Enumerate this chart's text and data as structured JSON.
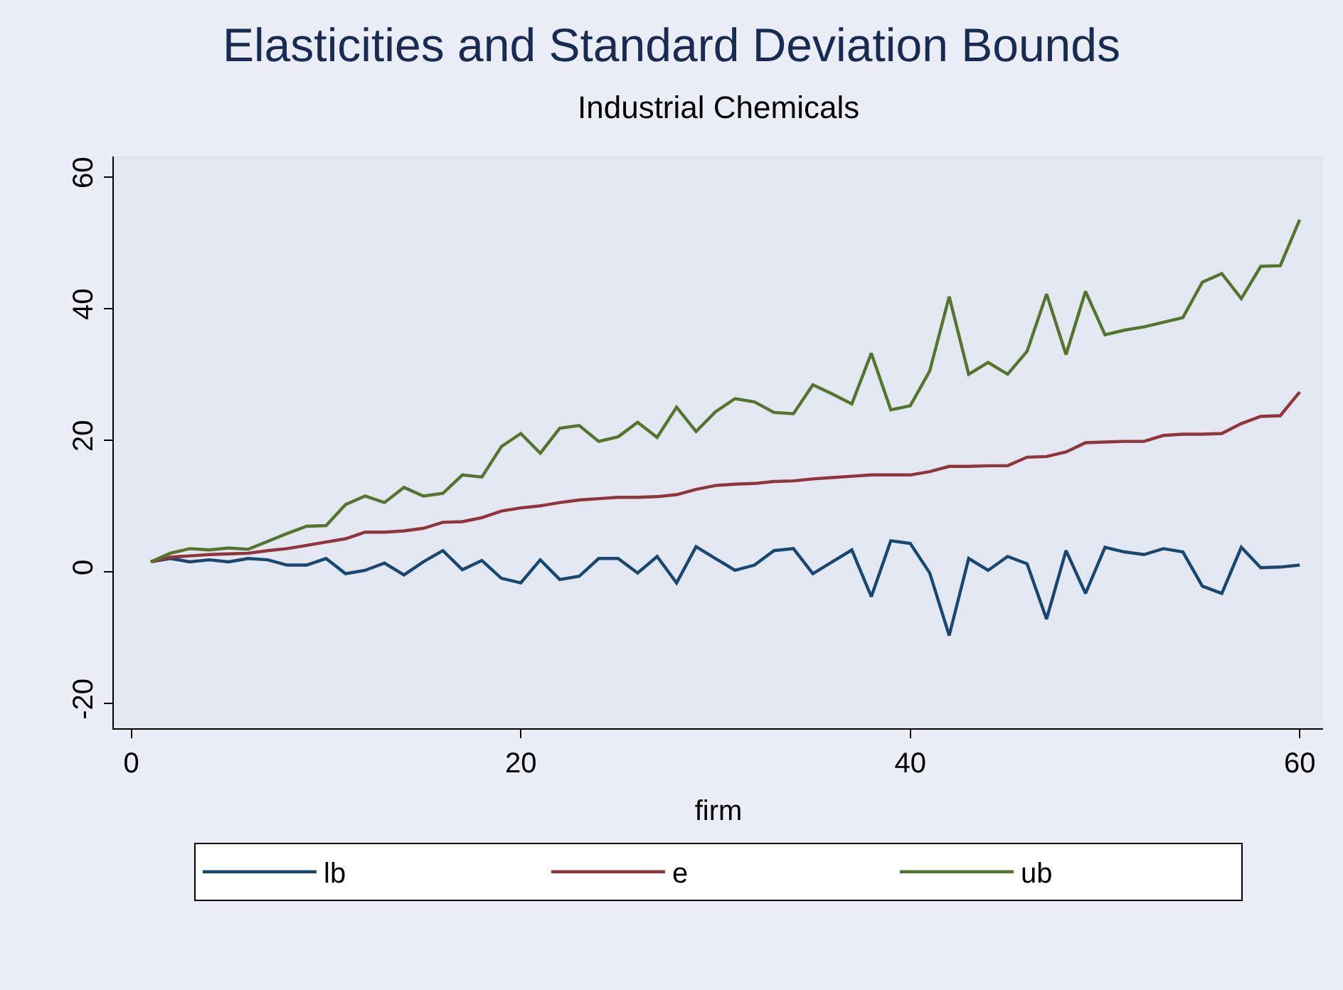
{
  "chart_data": {
    "type": "line",
    "title": "Elasticities and Standard Deviation Bounds",
    "subtitle": "Industrial Chemicals",
    "xlabel": "firm",
    "x": [
      1,
      2,
      3,
      4,
      5,
      6,
      7,
      8,
      9,
      10,
      11,
      12,
      13,
      14,
      15,
      16,
      17,
      18,
      19,
      20,
      21,
      22,
      23,
      24,
      25,
      26,
      27,
      28,
      29,
      30,
      31,
      32,
      33,
      34,
      35,
      36,
      37,
      38,
      39,
      40,
      41,
      42,
      43,
      44,
      45,
      46,
      47,
      48,
      49,
      50,
      51,
      52,
      53,
      54,
      55,
      56,
      57,
      58,
      59,
      60
    ],
    "series": [
      {
        "name": "lb",
        "color": "#1a476f",
        "values": [
          1.5,
          2,
          1.5,
          1.8,
          1.5,
          2,
          1.8,
          1,
          1,
          2,
          -0.3,
          0.2,
          1.3,
          -0.5,
          1.5,
          3.2,
          0.3,
          1.7,
          -1,
          -1.7,
          1.8,
          -1.2,
          -0.7,
          2,
          2,
          -0.2,
          2.3,
          -1.7,
          3.8,
          2,
          0.2,
          1,
          3.2,
          3.5,
          -0.3,
          1.5,
          3.3,
          -3.8,
          4.7,
          4.3,
          -0.2,
          -9.7,
          2,
          0.2,
          2.3,
          1.2,
          -7.2,
          3.2,
          -3.3,
          3.7,
          3,
          2.6,
          3.5,
          3,
          -2.2,
          -3.3,
          3.7,
          0.6,
          0.7,
          1
        ]
      },
      {
        "name": "e",
        "color": "#90353b",
        "values": [
          1.5,
          2.2,
          2.4,
          2.6,
          2.7,
          2.8,
          3.2,
          3.5,
          4,
          4.5,
          5,
          6,
          6,
          6.2,
          6.6,
          7.5,
          7.6,
          8.2,
          9.2,
          9.7,
          10,
          10.5,
          10.9,
          11.1,
          11.3,
          11.3,
          11.4,
          11.7,
          12.5,
          13.1,
          13.3,
          13.4,
          13.7,
          13.8,
          14.1,
          14.3,
          14.5,
          14.7,
          14.7,
          14.7,
          15.2,
          16,
          16,
          16.1,
          16.1,
          17.4,
          17.5,
          18.2,
          19.6,
          19.7,
          19.8,
          19.8,
          20.7,
          20.9,
          20.9,
          21,
          22.5,
          23.6,
          23.7,
          27.3
        ]
      },
      {
        "name": "ub",
        "color": "#55752f",
        "values": [
          1.5,
          2.8,
          3.5,
          3.3,
          3.6,
          3.4,
          4.6,
          5.8,
          6.9,
          7,
          10.2,
          11.5,
          10.5,
          12.8,
          11.5,
          11.9,
          14.7,
          14.4,
          19,
          21,
          18,
          21.8,
          22.2,
          19.8,
          20.5,
          22.7,
          20.4,
          25,
          21.3,
          24.3,
          26.3,
          25.8,
          24.2,
          24,
          28.4,
          27,
          25.5,
          33.2,
          24.6,
          25.2,
          30.5,
          41.8,
          30,
          31.8,
          30,
          33.5,
          42.2,
          33,
          42.6,
          36,
          36.7,
          37.2,
          37.9,
          38.6,
          44,
          45.3,
          41.5,
          46.4,
          46.5,
          53.5
        ]
      }
    ],
    "xlim": [
      -0.9,
      61.2
    ],
    "ylim": [
      -23.8,
      63.1
    ],
    "xticks": [
      0,
      20,
      40,
      60
    ],
    "yticks": [
      -20,
      0,
      20,
      40,
      60
    ],
    "grid": false,
    "legend": "bottom",
    "marker": "none",
    "line_style": "solid"
  }
}
